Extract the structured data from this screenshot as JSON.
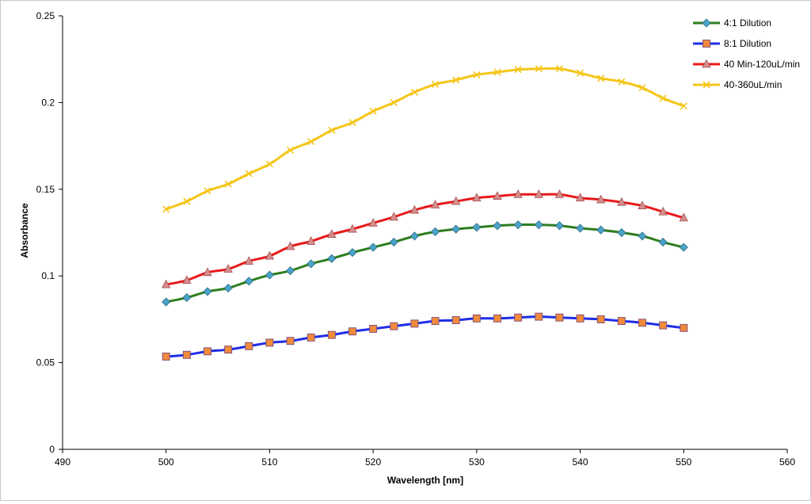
{
  "chart_data": {
    "type": "line",
    "title": "",
    "xlabel": "Wavelength [nm]",
    "ylabel": "Absorbance",
    "xlim": [
      490,
      560
    ],
    "ylim": [
      0,
      0.25
    ],
    "x_ticks": [
      "490",
      "500",
      "510",
      "520",
      "530",
      "540",
      "550",
      "560"
    ],
    "y_ticks": [
      "0",
      "0.05",
      "0.1",
      "0.15",
      "0.2",
      "0.25"
    ],
    "grid": false,
    "legend_position": "top-right",
    "x": [
      500,
      502,
      504,
      506,
      508,
      510,
      512,
      514,
      516,
      518,
      520,
      522,
      524,
      526,
      528,
      530,
      532,
      534,
      536,
      538,
      540,
      542,
      544,
      546,
      548,
      550
    ],
    "series": [
      {
        "name": "4:1 Dilution",
        "color": "#2e7d1f",
        "marker": "diamond",
        "marker_color": "#4aa3c8",
        "values": [
          0.085,
          0.0875,
          0.091,
          0.093,
          0.097,
          0.1005,
          0.103,
          0.107,
          0.11,
          0.1135,
          0.1165,
          0.1195,
          0.123,
          0.1255,
          0.127,
          0.128,
          0.129,
          0.1295,
          0.1295,
          0.129,
          0.1275,
          0.1265,
          0.125,
          0.123,
          0.1195,
          0.1165
        ]
      },
      {
        "name": "8:1 Dilution",
        "color": "#1f2ee6",
        "marker": "square",
        "marker_color": "#f08a3c",
        "values": [
          0.0535,
          0.0545,
          0.0565,
          0.0575,
          0.0595,
          0.0615,
          0.0625,
          0.0645,
          0.066,
          0.068,
          0.0695,
          0.071,
          0.0725,
          0.074,
          0.0745,
          0.0755,
          0.0755,
          0.076,
          0.0765,
          0.076,
          0.0755,
          0.075,
          0.074,
          0.073,
          0.0715,
          0.07
        ]
      },
      {
        "name": "40 Min-120uL/min",
        "color": "#e81a1a",
        "marker": "triangle",
        "marker_color": "#d98c8c",
        "values": [
          0.095,
          0.0975,
          0.102,
          0.104,
          0.1085,
          0.1115,
          0.117,
          0.12,
          0.124,
          0.127,
          0.1305,
          0.134,
          0.138,
          0.141,
          0.143,
          0.145,
          0.146,
          0.147,
          0.147,
          0.147,
          0.145,
          0.144,
          0.1425,
          0.1405,
          0.137,
          0.1335
        ]
      },
      {
        "name": "40-360uL/min",
        "color": "#f5c518",
        "marker": "x",
        "marker_color": "#f5c518",
        "values": [
          0.1385,
          0.143,
          0.149,
          0.153,
          0.159,
          0.1645,
          0.1725,
          0.1775,
          0.184,
          0.1885,
          0.195,
          0.2,
          0.206,
          0.2105,
          0.213,
          0.216,
          0.2175,
          0.219,
          0.2195,
          0.2195,
          0.217,
          0.214,
          0.212,
          0.2085,
          0.2025,
          0.198
        ]
      }
    ]
  }
}
